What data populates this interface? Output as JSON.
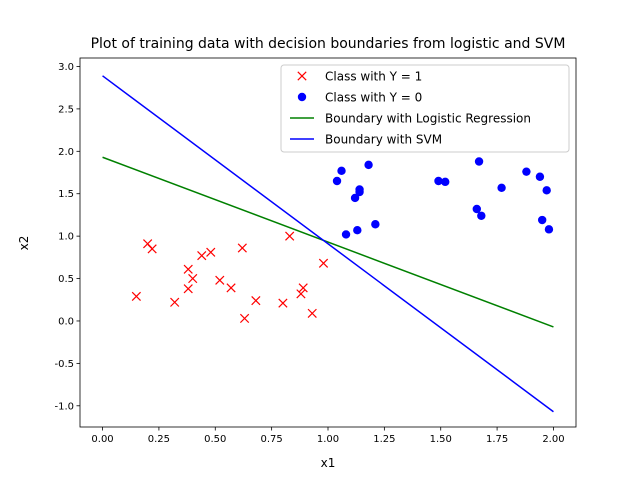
{
  "chart_data": {
    "type": "scatter",
    "title": "Plot of training data with decision boundaries from logistic and SVM",
    "xlabel": "x1",
    "ylabel": "x2",
    "xlim": [
      -0.1,
      2.1
    ],
    "ylim": [
      -1.25,
      3.1
    ],
    "xticks": [
      "0.00",
      "0.25",
      "0.50",
      "0.75",
      "1.00",
      "1.25",
      "1.50",
      "1.75",
      "2.00"
    ],
    "yticks": [
      "-1.0",
      "-0.5",
      "0.0",
      "0.5",
      "1.0",
      "1.5",
      "2.0",
      "2.5",
      "3.0"
    ],
    "grid": false,
    "legend_position": "top-right",
    "series": [
      {
        "name": "Class with Y = 1",
        "kind": "scatter",
        "marker": "x",
        "color": "#ff0000",
        "points": [
          [
            0.15,
            0.29
          ],
          [
            0.2,
            0.91
          ],
          [
            0.22,
            0.85
          ],
          [
            0.32,
            0.22
          ],
          [
            0.38,
            0.61
          ],
          [
            0.38,
            0.38
          ],
          [
            0.4,
            0.5
          ],
          [
            0.44,
            0.77
          ],
          [
            0.48,
            0.81
          ],
          [
            0.52,
            0.48
          ],
          [
            0.57,
            0.39
          ],
          [
            0.62,
            0.86
          ],
          [
            0.63,
            0.03
          ],
          [
            0.68,
            0.24
          ],
          [
            0.8,
            0.21
          ],
          [
            0.83,
            1.0
          ],
          [
            0.88,
            0.32
          ],
          [
            0.89,
            0.39
          ],
          [
            0.93,
            0.09
          ],
          [
            0.98,
            0.68
          ]
        ]
      },
      {
        "name": "Class with Y = 0",
        "kind": "scatter",
        "marker": "o",
        "color": "#0000ff",
        "points": [
          [
            1.04,
            1.65
          ],
          [
            1.06,
            1.77
          ],
          [
            1.08,
            1.02
          ],
          [
            1.12,
            1.45
          ],
          [
            1.13,
            1.07
          ],
          [
            1.14,
            1.55
          ],
          [
            1.14,
            1.52
          ],
          [
            1.18,
            1.84
          ],
          [
            1.21,
            1.14
          ],
          [
            1.49,
            1.65
          ],
          [
            1.52,
            1.64
          ],
          [
            1.66,
            1.32
          ],
          [
            1.67,
            1.88
          ],
          [
            1.68,
            1.24
          ],
          [
            1.77,
            1.57
          ],
          [
            1.88,
            1.76
          ],
          [
            1.94,
            1.7
          ],
          [
            1.95,
            1.19
          ],
          [
            1.97,
            1.54
          ],
          [
            1.98,
            1.08
          ]
        ]
      },
      {
        "name": "Boundary with Logistic Regression",
        "kind": "line",
        "color": "#008000",
        "points": [
          [
            0.0,
            1.93
          ],
          [
            2.0,
            -0.07
          ]
        ]
      },
      {
        "name": "Boundary with SVM",
        "kind": "line",
        "color": "#0000ff",
        "points": [
          [
            0.0,
            2.89
          ],
          [
            2.0,
            -1.07
          ]
        ]
      }
    ]
  }
}
